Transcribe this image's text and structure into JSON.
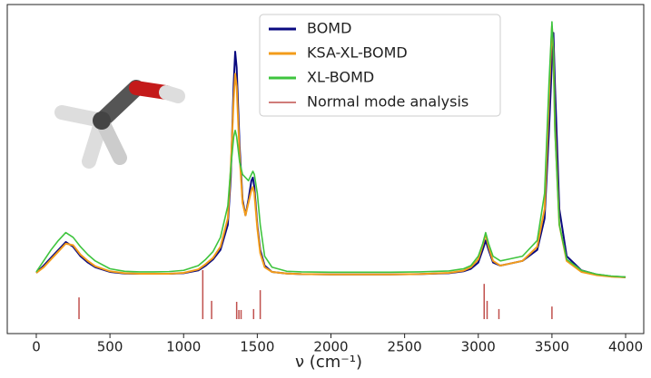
{
  "chart_data": {
    "type": "line",
    "x_label": "ν (cm⁻¹)",
    "xlim": [
      -197,
      4123
    ],
    "ylim": [
      -4.6,
      100
    ],
    "xticks": [
      0,
      500,
      1000,
      1500,
      2000,
      2500,
      3000,
      3500,
      4000
    ],
    "legend": "upper center",
    "x": [
      0,
      50,
      100,
      150,
      200,
      250,
      300,
      350,
      400,
      500,
      600,
      700,
      800,
      900,
      1000,
      1100,
      1150,
      1200,
      1250,
      1300,
      1320,
      1340,
      1350,
      1360,
      1380,
      1400,
      1420,
      1440,
      1460,
      1470,
      1480,
      1500,
      1520,
      1550,
      1600,
      1700,
      1800,
      2000,
      2200,
      2400,
      2600,
      2800,
      2900,
      2950,
      3000,
      3030,
      3050,
      3070,
      3100,
      3150,
      3200,
      3300,
      3400,
      3450,
      3480,
      3500,
      3510,
      3520,
      3550,
      3600,
      3700,
      3800,
      3900,
      4000
    ],
    "series": [
      {
        "name": "BOMD",
        "color": "#0a0a80",
        "values": [
          14.7,
          17,
          19.5,
          22,
          24.5,
          23,
          20,
          18,
          16.5,
          15,
          14.5,
          14.4,
          14.4,
          14.4,
          14.6,
          15.5,
          17,
          19,
          22,
          30,
          45,
          75,
          85,
          80,
          55,
          38,
          33,
          38,
          44,
          45,
          42,
          30,
          22,
          17,
          15,
          14.5,
          14.3,
          14.2,
          14.2,
          14.2,
          14.3,
          14.6,
          15.2,
          16,
          18,
          22,
          25,
          22,
          18,
          17,
          17.5,
          18.5,
          22,
          32,
          60,
          82,
          91,
          75,
          35,
          20,
          15.5,
          14.2,
          13.6,
          13.3
        ]
      },
      {
        "name": "KSA-XL-BOMD",
        "color": "#f39c1a",
        "values": [
          14.7,
          16.5,
          19,
          21.5,
          24,
          23.5,
          20.5,
          18.5,
          16.8,
          15.2,
          14.6,
          14.4,
          14.4,
          14.4,
          14.7,
          15.8,
          17.5,
          19.5,
          23,
          32,
          48,
          70,
          78,
          74,
          52,
          37,
          33,
          37,
          41,
          42,
          40,
          29,
          21,
          16.5,
          15,
          14.5,
          14.3,
          14.2,
          14.2,
          14.2,
          14.3,
          14.7,
          15.4,
          16.5,
          19,
          23.5,
          27,
          23,
          18.5,
          17,
          17.5,
          18.5,
          23,
          35,
          70,
          93,
          85,
          62,
          30,
          18.5,
          15,
          14,
          13.5,
          13.3
        ]
      },
      {
        "name": "XL-BOMD",
        "color": "#3ec43e",
        "values": [
          15,
          18.5,
          22,
          25,
          27.5,
          26,
          23,
          20.5,
          18.5,
          16,
          15.2,
          15,
          15,
          15.1,
          15.5,
          17,
          19,
          21.5,
          26,
          36,
          48,
          58,
          60,
          58,
          50,
          46,
          45,
          44,
          46,
          47,
          46,
          40,
          30,
          20,
          16.5,
          15.2,
          15,
          14.9,
          14.9,
          14.9,
          15,
          15.3,
          16,
          17,
          20,
          24,
          27.5,
          24,
          20,
          18.5,
          19,
          20,
          25,
          40,
          75,
          94.5,
          85,
          60,
          30,
          19,
          15.5,
          14.3,
          13.7,
          13.4
        ]
      }
    ],
    "normal_modes": {
      "name": "Normal mode analysis",
      "color": "#c0504d",
      "x": [
        290,
        1130,
        1190,
        1360,
        1375,
        1390,
        1475,
        1520,
        3040,
        3060,
        3140,
        3500
      ],
      "values": [
        6.9,
        15.6,
        5.8,
        5.5,
        2.9,
        2.9,
        3.2,
        9.2,
        11.2,
        5.8,
        3.2,
        4.0
      ]
    }
  }
}
